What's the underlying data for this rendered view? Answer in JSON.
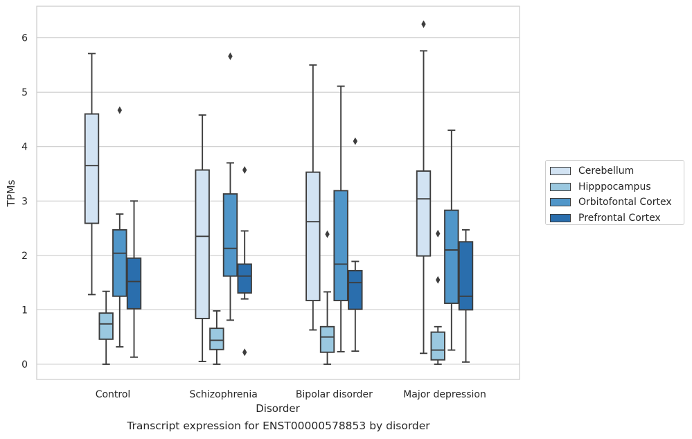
{
  "chart_data": {
    "type": "box",
    "title": "",
    "caption": "Transcript expression for ENST00000578853 by disorder",
    "xlabel": "Disorder",
    "ylabel": "TPMs",
    "ylim": [
      -0.28,
      6.58
    ],
    "yticks": [
      "0",
      "1",
      "2",
      "3",
      "4",
      "5",
      "6"
    ],
    "grid": "horizontal",
    "legend_position": "right",
    "categories": [
      "Control",
      "Schizophrenia",
      "Bipolar disorder",
      "Major depression"
    ],
    "series": [
      {
        "name": "Cerebellum",
        "color": "#d2e3f3",
        "boxes": [
          {
            "whisker_low": 1.28,
            "q1": 2.59,
            "median": 3.65,
            "q3": 4.6,
            "whisker_high": 5.71,
            "outliers": []
          },
          {
            "whisker_low": 0.05,
            "q1": 0.84,
            "median": 2.35,
            "q3": 3.57,
            "whisker_high": 4.58,
            "outliers": []
          },
          {
            "whisker_low": 0.63,
            "q1": 1.17,
            "median": 2.62,
            "q3": 3.53,
            "whisker_high": 5.5,
            "outliers": []
          },
          {
            "whisker_low": 0.2,
            "q1": 1.99,
            "median": 3.04,
            "q3": 3.55,
            "whisker_high": 5.76,
            "outliers": [
              6.25
            ]
          }
        ]
      },
      {
        "name": "Hipppocampus",
        "color": "#9ac8e0",
        "boxes": [
          {
            "whisker_low": 0.0,
            "q1": 0.46,
            "median": 0.74,
            "q3": 0.94,
            "whisker_high": 1.34,
            "outliers": []
          },
          {
            "whisker_low": 0.0,
            "q1": 0.27,
            "median": 0.44,
            "q3": 0.66,
            "whisker_high": 0.98,
            "outliers": []
          },
          {
            "whisker_low": 0.0,
            "q1": 0.22,
            "median": 0.5,
            "q3": 0.69,
            "whisker_high": 1.33,
            "outliers": [
              2.39
            ]
          },
          {
            "whisker_low": 0.0,
            "q1": 0.08,
            "median": 0.26,
            "q3": 0.59,
            "whisker_high": 0.69,
            "outliers": [
              2.4,
              1.55
            ]
          }
        ]
      },
      {
        "name": "Orbitofontal Cortex",
        "color": "#5096c9",
        "boxes": [
          {
            "whisker_low": 0.32,
            "q1": 1.25,
            "median": 2.04,
            "q3": 2.47,
            "whisker_high": 2.76,
            "outliers": [
              4.67
            ]
          },
          {
            "whisker_low": 0.81,
            "q1": 1.62,
            "median": 2.13,
            "q3": 3.13,
            "whisker_high": 3.7,
            "outliers": [
              5.66
            ]
          },
          {
            "whisker_low": 0.23,
            "q1": 1.17,
            "median": 1.84,
            "q3": 3.19,
            "whisker_high": 5.11,
            "outliers": []
          },
          {
            "whisker_low": 0.26,
            "q1": 1.12,
            "median": 2.1,
            "q3": 2.83,
            "whisker_high": 4.3,
            "outliers": []
          }
        ]
      },
      {
        "name": "Prefrontal Cortex",
        "color": "#2a6ead",
        "boxes": [
          {
            "whisker_low": 0.13,
            "q1": 1.02,
            "median": 1.52,
            "q3": 1.95,
            "whisker_high": 3.0,
            "outliers": []
          },
          {
            "whisker_low": 1.2,
            "q1": 1.31,
            "median": 1.62,
            "q3": 1.84,
            "whisker_high": 2.45,
            "outliers": [
              3.57,
              0.22
            ]
          },
          {
            "whisker_low": 0.24,
            "q1": 1.01,
            "median": 1.5,
            "q3": 1.72,
            "whisker_high": 1.89,
            "outliers": [
              4.1
            ]
          },
          {
            "whisker_low": 0.04,
            "q1": 1.0,
            "median": 1.25,
            "q3": 2.25,
            "whisker_high": 2.47,
            "outliers": []
          }
        ]
      }
    ]
  }
}
